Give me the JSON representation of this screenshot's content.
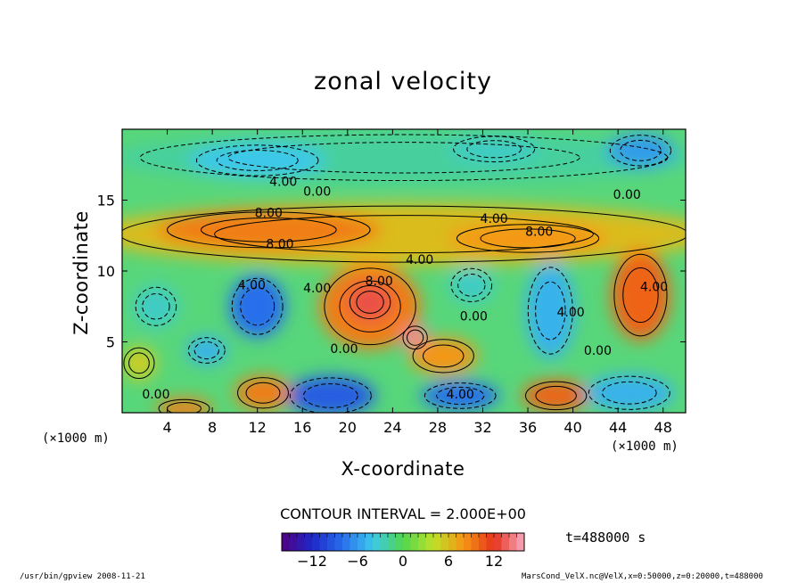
{
  "chart_data": {
    "type": "heatmap",
    "title": "zonal velocity",
    "xlabel": "X-coordinate",
    "ylabel": "Z-coordinate",
    "x_unit": "(×1000 m)",
    "xlim": [
      0,
      50
    ],
    "ylim": [
      0,
      20
    ],
    "x_ticks": [
      4,
      8,
      12,
      16,
      20,
      24,
      28,
      32,
      36,
      40,
      44,
      48
    ],
    "y_ticks": [
      5,
      10,
      15
    ],
    "contour_labels": [
      {
        "text": "4.00",
        "x": 14.3,
        "y": 16.0
      },
      {
        "text": "0.00",
        "x": 17.3,
        "y": 15.3
      },
      {
        "text": "8.00",
        "x": 13.0,
        "y": 13.8
      },
      {
        "text": "8.00",
        "x": 14.0,
        "y": 11.6
      },
      {
        "text": "4.00",
        "x": 11.5,
        "y": 8.7
      },
      {
        "text": "4.00",
        "x": 17.3,
        "y": 8.5
      },
      {
        "text": "8.00",
        "x": 22.8,
        "y": 9.0
      },
      {
        "text": "4.00",
        "x": 26.4,
        "y": 10.5
      },
      {
        "text": "4.00",
        "x": 33.0,
        "y": 13.4
      },
      {
        "text": "8.00",
        "x": 37.0,
        "y": 12.5
      },
      {
        "text": "0.00",
        "x": 44.8,
        "y": 15.1
      },
      {
        "text": "0.00",
        "x": 31.2,
        "y": 6.5
      },
      {
        "text": "0.00",
        "x": 19.7,
        "y": 4.2
      },
      {
        "text": "4.00",
        "x": 39.8,
        "y": 6.8
      },
      {
        "text": "0.00",
        "x": 42.2,
        "y": 4.1
      },
      {
        "text": "4.00",
        "x": 47.2,
        "y": 8.6
      },
      {
        "text": "0.00",
        "x": 3.0,
        "y": 1.0
      },
      {
        "text": "4.00",
        "x": 30.0,
        "y": 1.0
      }
    ],
    "colorbar": {
      "min": -16,
      "max": 16,
      "step": 2,
      "tick_values": [
        -12,
        -6,
        0,
        6,
        12
      ],
      "tick_labels": [
        "−12",
        "−6",
        "0",
        "6",
        "12"
      ]
    },
    "contour_interval_text": "CONTOUR INTERVAL = 2.000E+00",
    "time_text": "t=488000 s"
  },
  "footer": {
    "left": "/usr/bin/gpview  2008-11-21",
    "right": "MarsCond_VelX.nc@VelX,x=0:50000,z=0:20000,t=488000"
  },
  "colors": {
    "negative_max": "#4b0082",
    "negative": "#1e46dc",
    "near_zero": "#46dc3c",
    "positive": "#f05014",
    "positive_max": "#f0a0b4"
  }
}
